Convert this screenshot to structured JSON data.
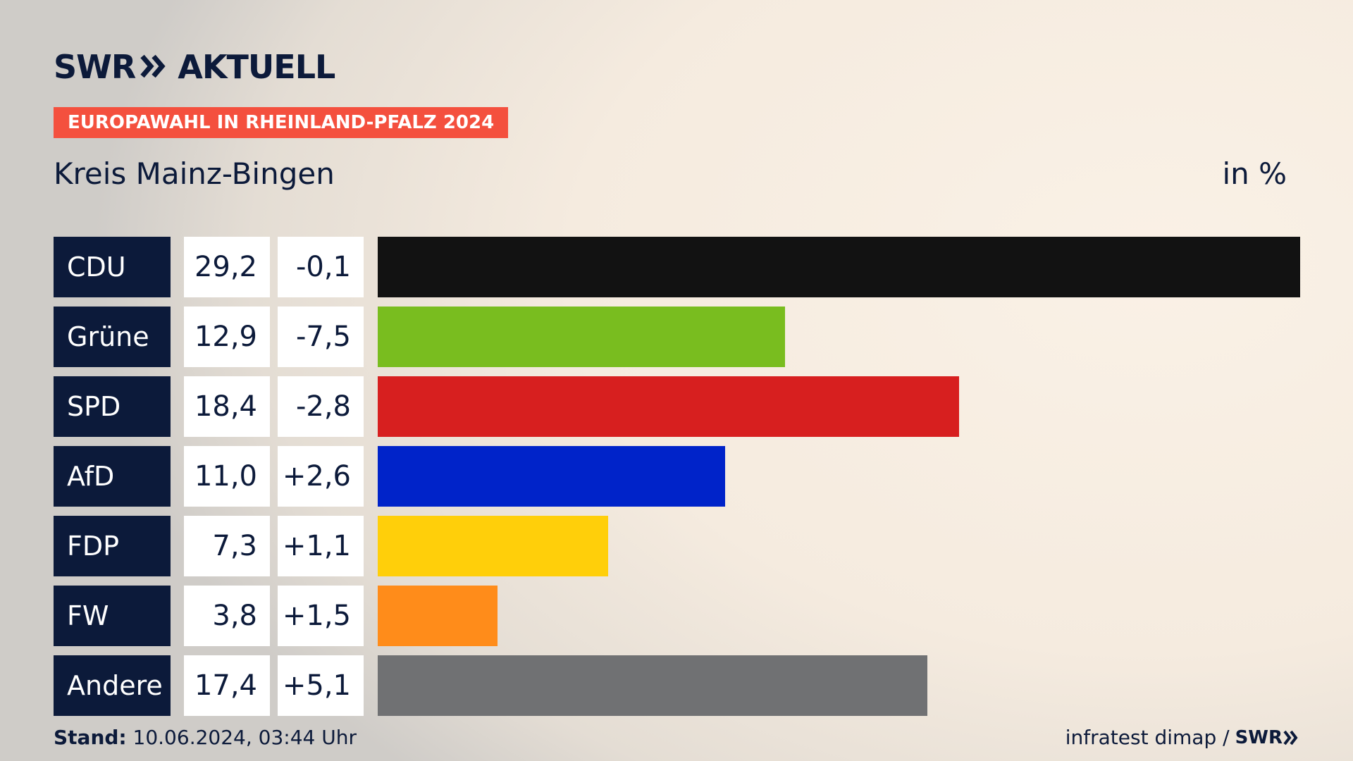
{
  "header": {
    "logo_text": "SWR",
    "logo_suffix": "AKTUELL",
    "banner": "EUROPAWAHL IN RHEINLAND-PFALZ 2024",
    "subtitle": "Kreis Mainz-Bingen",
    "unit": "in %"
  },
  "chart_data": {
    "type": "bar",
    "orientation": "horizontal",
    "title": "Kreis Mainz-Bingen",
    "unit": "in %",
    "xlim": [
      0,
      29.2
    ],
    "categories": [
      "CDU",
      "Grüne",
      "SPD",
      "AfD",
      "FDP",
      "FW",
      "Andere"
    ],
    "values": [
      29.2,
      12.9,
      18.4,
      11.0,
      7.3,
      3.8,
      17.4
    ],
    "value_labels": [
      "29,2",
      "12,9",
      "18,4",
      "11,0",
      "7,3",
      "3,8",
      "17,4"
    ],
    "change_labels": [
      "-0,1",
      "-7,5",
      "-2,8",
      "+2,6",
      "+1,1",
      "+1,5",
      "+5,1"
    ],
    "changes": [
      -0.1,
      -7.5,
      -2.8,
      2.6,
      1.1,
      1.5,
      5.1
    ],
    "colors": [
      "#121212",
      "#79bd1f",
      "#d71f1f",
      "#0023c9",
      "#ffcf0a",
      "#ff8c1a",
      "#707173"
    ]
  },
  "footer": {
    "stand_label": "Stand:",
    "stand_value": "10.06.2024, 03:44 Uhr",
    "source": "infratest dimap /",
    "source_logo": "SWR"
  }
}
